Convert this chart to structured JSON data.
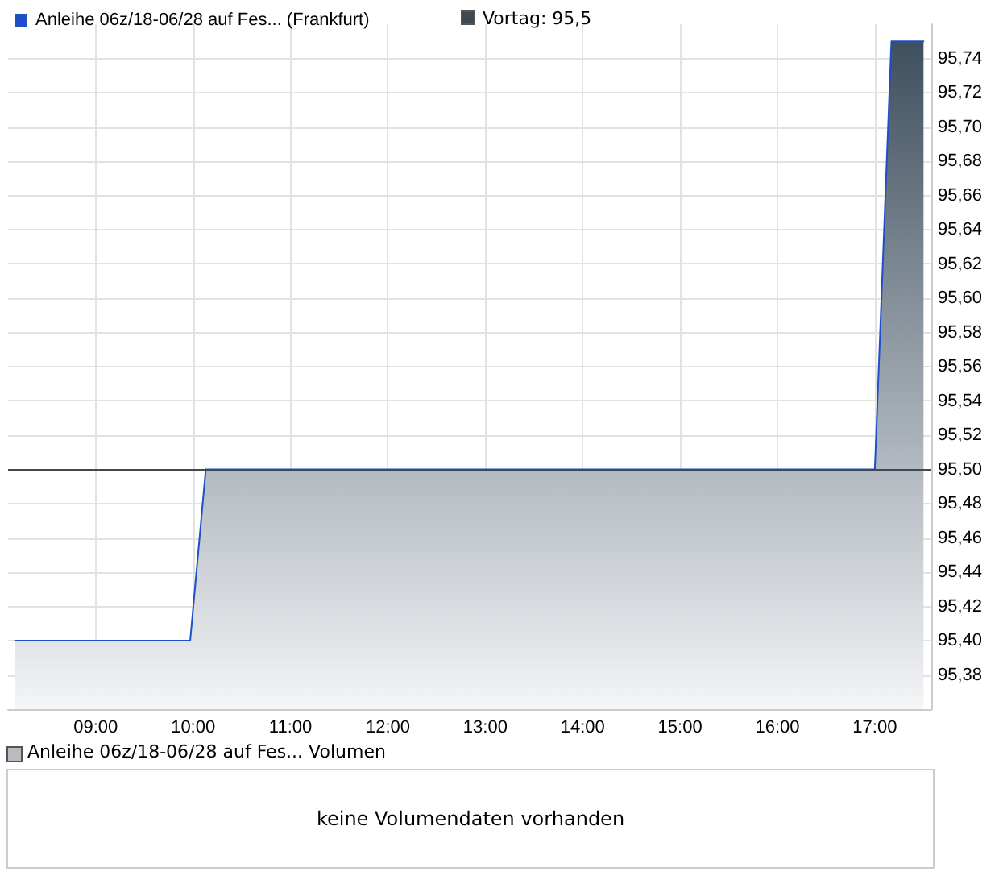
{
  "chart_data": [
    {
      "type": "area",
      "x": [
        8.17,
        9.97,
        10.13,
        17.0,
        17.17,
        17.5
      ],
      "series": [
        {
          "name": "Anleihe 06z/18-06/28 auf Fes... (Frankfurt)",
          "color": "#1f4fc8",
          "values": [
            95.4,
            95.4,
            95.5,
            95.5,
            95.75,
            95.75
          ]
        }
      ],
      "xlim": [
        8.1,
        17.58
      ],
      "xticks": [
        {
          "value": 9,
          "label": "09:00"
        },
        {
          "value": 10,
          "label": "10:00"
        },
        {
          "value": 11,
          "label": "11:00"
        },
        {
          "value": 12,
          "label": "12:00"
        },
        {
          "value": 13,
          "label": "13:00"
        },
        {
          "value": 14,
          "label": "14:00"
        },
        {
          "value": 15,
          "label": "15:00"
        },
        {
          "value": 16,
          "label": "16:00"
        },
        {
          "value": 17,
          "label": "17:00"
        }
      ],
      "ylim": [
        95.36,
        95.76
      ],
      "yticks": [
        {
          "value": 95.38,
          "label": "95,38"
        },
        {
          "value": 95.4,
          "label": "95,40"
        },
        {
          "value": 95.42,
          "label": "95,42"
        },
        {
          "value": 95.44,
          "label": "95,44"
        },
        {
          "value": 95.46,
          "label": "95,46"
        },
        {
          "value": 95.48,
          "label": "95,48"
        },
        {
          "value": 95.5,
          "label": "95,50"
        },
        {
          "value": 95.52,
          "label": "95,52"
        },
        {
          "value": 95.54,
          "label": "95,54"
        },
        {
          "value": 95.56,
          "label": "95,56"
        },
        {
          "value": 95.58,
          "label": "95,58"
        },
        {
          "value": 95.6,
          "label": "95,60"
        },
        {
          "value": 95.62,
          "label": "95,62"
        },
        {
          "value": 95.64,
          "label": "95,64"
        },
        {
          "value": 95.66,
          "label": "95,66"
        },
        {
          "value": 95.68,
          "label": "95,68"
        },
        {
          "value": 95.7,
          "label": "95,70"
        },
        {
          "value": 95.72,
          "label": "95,72"
        },
        {
          "value": 95.74,
          "label": "95,74"
        }
      ],
      "ref_lines": [
        {
          "axis": "y",
          "value": 95.5,
          "label": "Vortag: 95,5",
          "color": "#404850"
        }
      ],
      "grid": true,
      "legend": "top left",
      "marker": "none",
      "line_style": "solid"
    },
    {
      "type": "other",
      "annotations": [
        "Anleihe 06z/18-06/28 auf Fes... Volumen",
        "keine Volumendaten vorhanden"
      ]
    }
  ]
}
